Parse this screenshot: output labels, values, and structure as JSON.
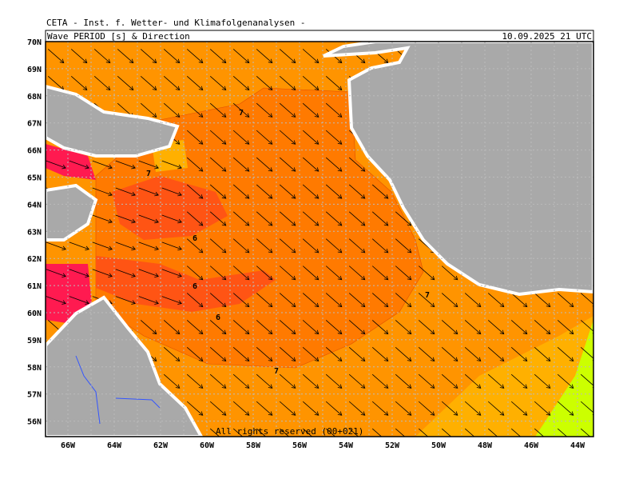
{
  "header": {
    "institute": "CETA - Inst. f. Wetter- und Klimafolgenanalysen -",
    "product": "Wave PERIOD [s] & Direction",
    "timestamp": "10.09.2025 21 UTC"
  },
  "axes": {
    "latitude_labels": [
      "70N",
      "69N",
      "68N",
      "67N",
      "66N",
      "65N",
      "64N",
      "63N",
      "62N",
      "61N",
      "60N",
      "59N",
      "58N",
      "57N",
      "56N"
    ],
    "longitude_labels": [
      "66W",
      "64W",
      "62W",
      "60W",
      "58W",
      "56W",
      "54W",
      "52W",
      "50W",
      "48W",
      "46W",
      "44W"
    ]
  },
  "contour_labels": [
    "7",
    "7",
    "6",
    "6",
    "6",
    "7",
    "7"
  ],
  "footer": "All rights reserved (00+021)"
}
